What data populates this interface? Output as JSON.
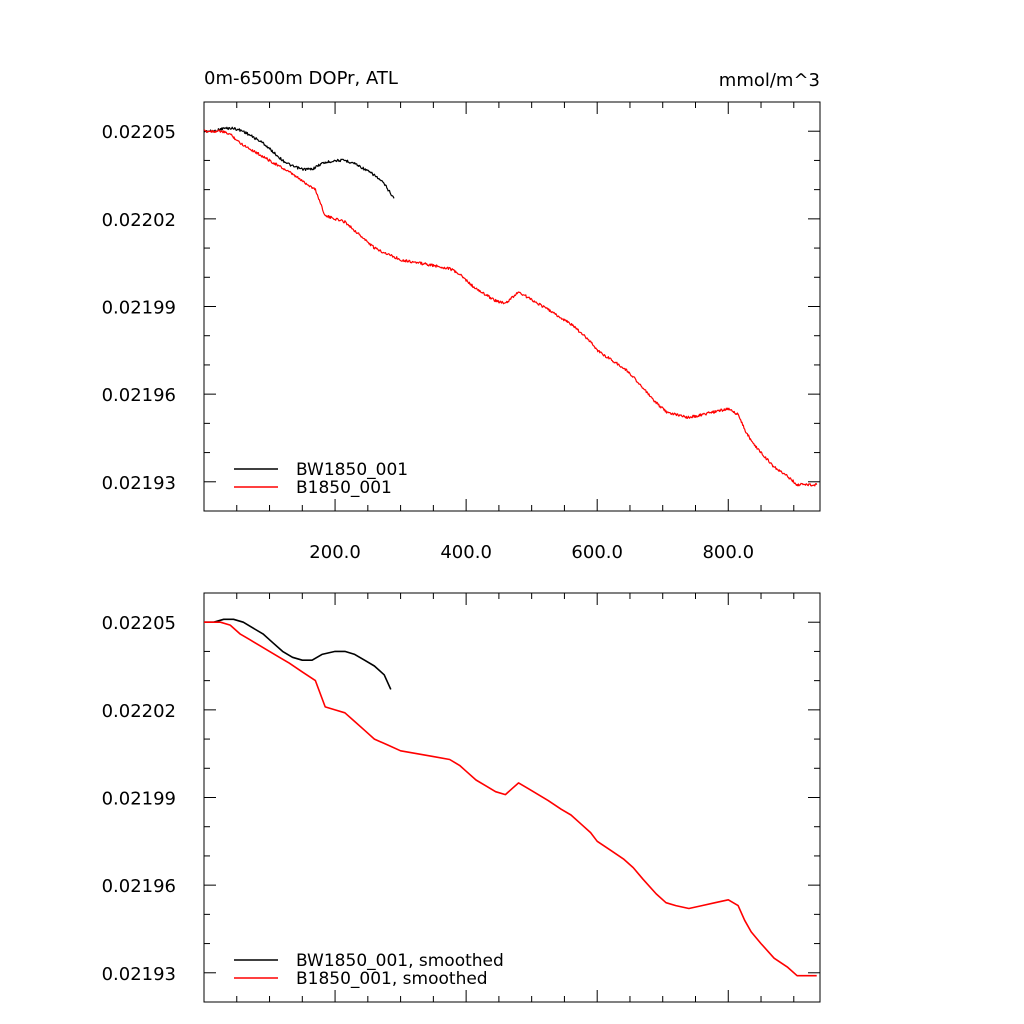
{
  "chart_data": [
    {
      "type": "line",
      "title": "0m-6500m DOPr, ATL",
      "units_label": "mmol/m^3",
      "xlim": [
        0,
        940
      ],
      "ylim": [
        0.02192,
        0.02206
      ],
      "x_ticks": [
        200,
        400,
        600,
        800
      ],
      "x_tick_labels": [
        "200.0",
        "400.0",
        "600.0",
        "800.0"
      ],
      "y_ticks": [
        0.02193,
        0.02196,
        0.02199,
        0.02202,
        0.02205
      ],
      "y_tick_labels": [
        "0.02193",
        "0.02196",
        "0.02199",
        "0.02202",
        "0.02205"
      ],
      "legend_position": "bottom-left",
      "smoothed": false,
      "series": [
        {
          "name": "BW1850_001",
          "color": "#000000",
          "x": [
            0,
            15,
            30,
            45,
            60,
            75,
            90,
            105,
            120,
            135,
            150,
            165,
            180,
            200,
            215,
            230,
            245,
            260,
            275,
            290
          ],
          "values": [
            0.02205,
            0.02205,
            0.022051,
            0.022051,
            0.02205,
            0.022048,
            0.022046,
            0.022043,
            0.02204,
            0.022038,
            0.022037,
            0.022037,
            0.022039,
            0.02204,
            0.02204,
            0.022039,
            0.022037,
            0.022035,
            0.022032,
            0.022027
          ]
        },
        {
          "name": "B1850_001",
          "color": "#ff0000",
          "x": [
            0,
            25,
            40,
            55,
            70,
            85,
            100,
            115,
            130,
            150,
            170,
            185,
            200,
            215,
            230,
            245,
            260,
            280,
            300,
            325,
            350,
            375,
            390,
            400,
            415,
            430,
            445,
            460,
            470,
            480,
            495,
            510,
            525,
            545,
            560,
            575,
            590,
            600,
            620,
            640,
            655,
            670,
            690,
            705,
            720,
            740,
            760,
            780,
            800,
            815,
            825,
            835,
            850,
            870,
            890,
            905,
            920,
            935
          ],
          "values": [
            0.02205,
            0.02205,
            0.022049,
            0.022046,
            0.022044,
            0.022042,
            0.02204,
            0.022038,
            0.022036,
            0.022033,
            0.02203,
            0.022021,
            0.02202,
            0.022019,
            0.022016,
            0.022013,
            0.02201,
            0.022008,
            0.022006,
            0.022005,
            0.022004,
            0.022003,
            0.022001,
            0.021999,
            0.021996,
            0.021994,
            0.021992,
            0.021991,
            0.021993,
            0.021995,
            0.021993,
            0.021991,
            0.021989,
            0.021986,
            0.021984,
            0.021981,
            0.021978,
            0.021975,
            0.021972,
            0.021969,
            0.021966,
            0.021962,
            0.021957,
            0.021954,
            0.021953,
            0.021952,
            0.021953,
            0.021954,
            0.021955,
            0.021953,
            0.021948,
            0.021944,
            0.02194,
            0.021935,
            0.021932,
            0.021929,
            0.021929,
            0.021929
          ]
        }
      ]
    },
    {
      "type": "line",
      "xlim": [
        0,
        940
      ],
      "ylim": [
        0.02192,
        0.02206
      ],
      "x_ticks": [
        200,
        400,
        600,
        800
      ],
      "y_ticks": [
        0.02193,
        0.02196,
        0.02199,
        0.02202,
        0.02205
      ],
      "y_tick_labels": [
        "0.02193",
        "0.02196",
        "0.02199",
        "0.02202",
        "0.02205"
      ],
      "legend_position": "bottom-left",
      "smoothed": true,
      "series": [
        {
          "name": "BW1850_001, smoothed",
          "color": "#000000",
          "x": [
            0,
            15,
            30,
            45,
            60,
            75,
            90,
            105,
            120,
            135,
            150,
            165,
            180,
            200,
            215,
            230,
            245,
            260,
            275,
            285
          ],
          "values": [
            0.02205,
            0.02205,
            0.022051,
            0.022051,
            0.02205,
            0.022048,
            0.022046,
            0.022043,
            0.02204,
            0.022038,
            0.022037,
            0.022037,
            0.022039,
            0.02204,
            0.02204,
            0.022039,
            0.022037,
            0.022035,
            0.022032,
            0.022027
          ]
        },
        {
          "name": "B1850_001, smoothed",
          "color": "#ff0000",
          "x": [
            0,
            25,
            40,
            55,
            70,
            85,
            100,
            115,
            130,
            150,
            170,
            185,
            200,
            215,
            230,
            245,
            260,
            280,
            300,
            325,
            350,
            375,
            390,
            400,
            415,
            430,
            445,
            460,
            470,
            480,
            495,
            510,
            525,
            545,
            560,
            575,
            590,
            600,
            620,
            640,
            655,
            670,
            690,
            705,
            720,
            740,
            760,
            780,
            800,
            815,
            825,
            835,
            850,
            870,
            890,
            905,
            920,
            935
          ],
          "values": [
            0.02205,
            0.02205,
            0.022049,
            0.022046,
            0.022044,
            0.022042,
            0.02204,
            0.022038,
            0.022036,
            0.022033,
            0.02203,
            0.022021,
            0.02202,
            0.022019,
            0.022016,
            0.022013,
            0.02201,
            0.022008,
            0.022006,
            0.022005,
            0.022004,
            0.022003,
            0.022001,
            0.021999,
            0.021996,
            0.021994,
            0.021992,
            0.021991,
            0.021993,
            0.021995,
            0.021993,
            0.021991,
            0.021989,
            0.021986,
            0.021984,
            0.021981,
            0.021978,
            0.021975,
            0.021972,
            0.021969,
            0.021966,
            0.021962,
            0.021957,
            0.021954,
            0.021953,
            0.021952,
            0.021953,
            0.021954,
            0.021955,
            0.021953,
            0.021948,
            0.021944,
            0.02194,
            0.021935,
            0.021932,
            0.021929,
            0.021929,
            0.021929
          ]
        }
      ]
    }
  ]
}
